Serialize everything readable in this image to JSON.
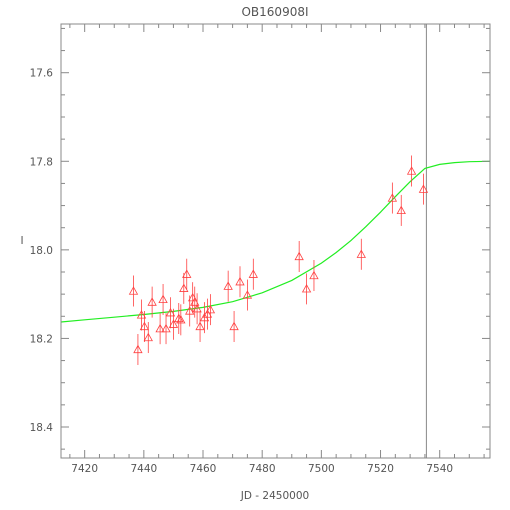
{
  "chart_data": {
    "type": "scatter",
    "title": "OB160908I",
    "xlabel": "JD - 2450000",
    "ylabel": "I",
    "xlim": [
      7412,
      7557
    ],
    "ylim": [
      18.47,
      17.49
    ],
    "y_inverted": true,
    "xticks": [
      7420,
      7440,
      7460,
      7480,
      7500,
      7520,
      7540
    ],
    "yticks": [
      17.6,
      17.8,
      18.0,
      18.2,
      18.4
    ],
    "ytick_labels": [
      "17.6",
      "17.8",
      "18.0",
      "18.2",
      "18.4"
    ],
    "vertical_line_x": 7535.5,
    "colors": {
      "points": "#ff4040",
      "model": "#22ee22",
      "vline": "#888888",
      "axes": "#888888"
    },
    "marker": "open-triangle-with-errorbar",
    "points": [
      {
        "x": 7436.5,
        "y": 18.093,
        "err": 0.035
      },
      {
        "x": 7438.0,
        "y": 18.225,
        "err": 0.035
      },
      {
        "x": 7439.2,
        "y": 18.147,
        "err": 0.035
      },
      {
        "x": 7440.2,
        "y": 18.173,
        "err": 0.035
      },
      {
        "x": 7441.5,
        "y": 18.198,
        "err": 0.035
      },
      {
        "x": 7442.8,
        "y": 18.118,
        "err": 0.035
      },
      {
        "x": 7445.5,
        "y": 18.178,
        "err": 0.035
      },
      {
        "x": 7446.5,
        "y": 18.112,
        "err": 0.035
      },
      {
        "x": 7447.5,
        "y": 18.178,
        "err": 0.035
      },
      {
        "x": 7449.0,
        "y": 18.142,
        "err": 0.035
      },
      {
        "x": 7450.0,
        "y": 18.168,
        "err": 0.035
      },
      {
        "x": 7451.8,
        "y": 18.155,
        "err": 0.035
      },
      {
        "x": 7452.5,
        "y": 18.158,
        "err": 0.035
      },
      {
        "x": 7453.5,
        "y": 18.087,
        "err": 0.035
      },
      {
        "x": 7454.5,
        "y": 18.055,
        "err": 0.035
      },
      {
        "x": 7455.5,
        "y": 18.138,
        "err": 0.035
      },
      {
        "x": 7456.5,
        "y": 18.108,
        "err": 0.035
      },
      {
        "x": 7457.2,
        "y": 18.118,
        "err": 0.035
      },
      {
        "x": 7458.0,
        "y": 18.133,
        "err": 0.035
      },
      {
        "x": 7459.0,
        "y": 18.173,
        "err": 0.035
      },
      {
        "x": 7460.5,
        "y": 18.153,
        "err": 0.035
      },
      {
        "x": 7461.5,
        "y": 18.145,
        "err": 0.035
      },
      {
        "x": 7462.5,
        "y": 18.135,
        "err": 0.035
      },
      {
        "x": 7468.5,
        "y": 18.082,
        "err": 0.035
      },
      {
        "x": 7470.5,
        "y": 18.173,
        "err": 0.035
      },
      {
        "x": 7472.5,
        "y": 18.072,
        "err": 0.035
      },
      {
        "x": 7475.0,
        "y": 18.102,
        "err": 0.035
      },
      {
        "x": 7477.0,
        "y": 18.055,
        "err": 0.035
      },
      {
        "x": 7492.5,
        "y": 18.015,
        "err": 0.035
      },
      {
        "x": 7495.0,
        "y": 18.088,
        "err": 0.035
      },
      {
        "x": 7497.5,
        "y": 18.058,
        "err": 0.035
      },
      {
        "x": 7513.5,
        "y": 18.01,
        "err": 0.035
      },
      {
        "x": 7524.0,
        "y": 17.883,
        "err": 0.035
      },
      {
        "x": 7527.0,
        "y": 17.911,
        "err": 0.035
      },
      {
        "x": 7530.5,
        "y": 17.822,
        "err": 0.035
      },
      {
        "x": 7534.5,
        "y": 17.863,
        "err": 0.035
      }
    ],
    "model_curve": {
      "x": [
        7412,
        7420,
        7430,
        7440,
        7450,
        7460,
        7470,
        7480,
        7490,
        7500,
        7505,
        7510,
        7515,
        7520,
        7525,
        7530,
        7535,
        7540,
        7545,
        7550,
        7557
      ],
      "y": [
        18.163,
        18.158,
        18.152,
        18.146,
        18.139,
        18.13,
        18.117,
        18.097,
        18.069,
        18.03,
        18.006,
        17.979,
        17.948,
        17.915,
        17.88,
        17.846,
        17.816,
        17.807,
        17.803,
        17.801,
        17.8
      ]
    }
  }
}
